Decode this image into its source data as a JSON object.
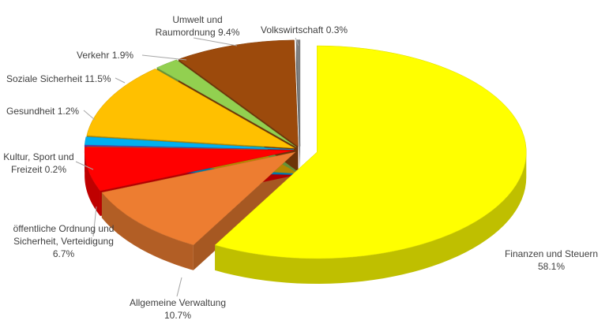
{
  "chart_data": {
    "type": "pie",
    "categories": [
      "Finanzen und Steuern",
      "Allgemeine Verwaltung",
      "öffentliche Ordnung und Sicherheit, Verteidigung",
      "Kultur, Sport und Freizeit",
      "Gesundheit",
      "Soziale Sicherheit",
      "Verkehr",
      "Umwelt und Raumordnung",
      "Volkswirtschaft"
    ],
    "values": [
      58.1,
      10.7,
      6.7,
      0.2,
      1.2,
      11.5,
      1.9,
      9.4,
      0.3
    ],
    "value_labels": [
      "58.1%",
      "10.7%",
      "6.7%",
      "0.2%",
      "1.2%",
      "11.5%",
      "1.9%",
      "9.4%",
      "0.3%"
    ],
    "colors": [
      "#ffff00",
      "#ed7d31",
      "#ff0000",
      "#7030a0",
      "#00b0f0",
      "#ffc000",
      "#92d050",
      "#9c4a0c",
      "#808080"
    ]
  }
}
